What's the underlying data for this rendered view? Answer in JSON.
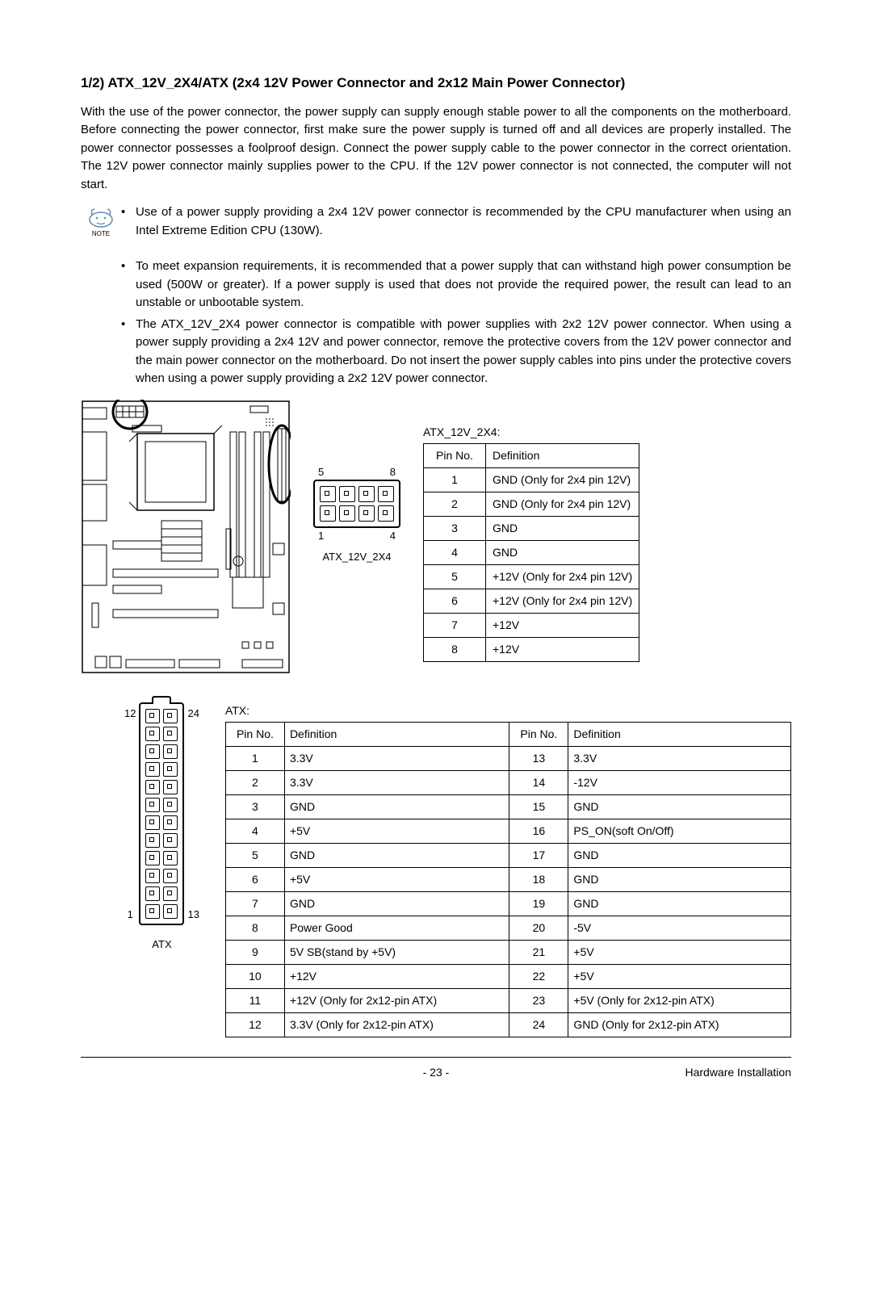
{
  "heading": "1/2) ATX_12V_2X4/ATX (2x4 12V Power Connector and 2x12 Main Power Connector)",
  "intro": "With the use of the power connector, the power supply can supply enough stable power to all the components on the motherboard. Before connecting the power connector, first make sure the power supply is turned off and all devices are properly installed. The power connector possesses a foolproof design. Connect the power supply cable to the power connector in the correct orientation. The 12V power connector mainly supplies power to the CPU. If the 12V power connector is not connected, the computer will not start.",
  "note_label": "NOTE",
  "bullets": [
    "Use of a power supply providing a 2x4 12V power connector is recommended by the CPU manufacturer when using an Intel Extreme Edition CPU (130W).",
    "To meet expansion requirements, it is recommended that a power supply that can withstand high power consumption be used (500W or greater). If a power supply is used that does not provide the required power, the result can lead to an unstable or unbootable system.",
    "The ATX_12V_2X4 power connector is compatible with power supplies with 2x2 12V power connector. When using a power supply providing a 2x4 12V and power connector, remove the protective covers from the 12V power connector and the main power connector on the motherboard. Do not insert the power supply cables into pins under the protective covers when using a power supply providing a 2x2 12V power connector."
  ],
  "conn_2x4": {
    "label": "ATX_12V_2X4",
    "top_left": "5",
    "top_right": "8",
    "bot_left": "1",
    "bot_right": "4"
  },
  "table_12v": {
    "title": "ATX_12V_2X4:",
    "headers": [
      "Pin No.",
      "Definition"
    ],
    "rows": [
      [
        "1",
        "GND (Only for 2x4 pin 12V)"
      ],
      [
        "2",
        "GND (Only for 2x4 pin 12V)"
      ],
      [
        "3",
        "GND"
      ],
      [
        "4",
        "GND"
      ],
      [
        "5",
        "+12V (Only for 2x4 pin 12V)"
      ],
      [
        "6",
        "+12V (Only for 2x4 pin 12V)"
      ],
      [
        "7",
        "+12V"
      ],
      [
        "8",
        "+12V"
      ]
    ]
  },
  "conn_atx": {
    "label": "ATX",
    "left_top": "12",
    "left_bot": "1",
    "right_top": "24",
    "right_bot": "13"
  },
  "table_atx": {
    "title": "ATX:",
    "headers": [
      "Pin No.",
      "Definition",
      "Pin No.",
      "Definition"
    ],
    "rows": [
      [
        "1",
        "3.3V",
        "13",
        "3.3V"
      ],
      [
        "2",
        "3.3V",
        "14",
        "-12V"
      ],
      [
        "3",
        "GND",
        "15",
        "GND"
      ],
      [
        "4",
        "+5V",
        "16",
        "PS_ON(soft On/Off)"
      ],
      [
        "5",
        "GND",
        "17",
        "GND"
      ],
      [
        "6",
        "+5V",
        "18",
        "GND"
      ],
      [
        "7",
        "GND",
        "19",
        "GND"
      ],
      [
        "8",
        "Power Good",
        "20",
        "-5V"
      ],
      [
        "9",
        "5V SB(stand by +5V)",
        "21",
        "+5V"
      ],
      [
        "10",
        "+12V",
        "22",
        "+5V"
      ],
      [
        "11",
        "+12V (Only for 2x12-pin ATX)",
        "23",
        "+5V (Only for 2x12-pin ATX)"
      ],
      [
        "12",
        "3.3V (Only for 2x12-pin ATX)",
        "24",
        "GND (Only for 2x12-pin ATX)"
      ]
    ]
  },
  "footer": {
    "page": "- 23 -",
    "section": "Hardware Installation"
  }
}
